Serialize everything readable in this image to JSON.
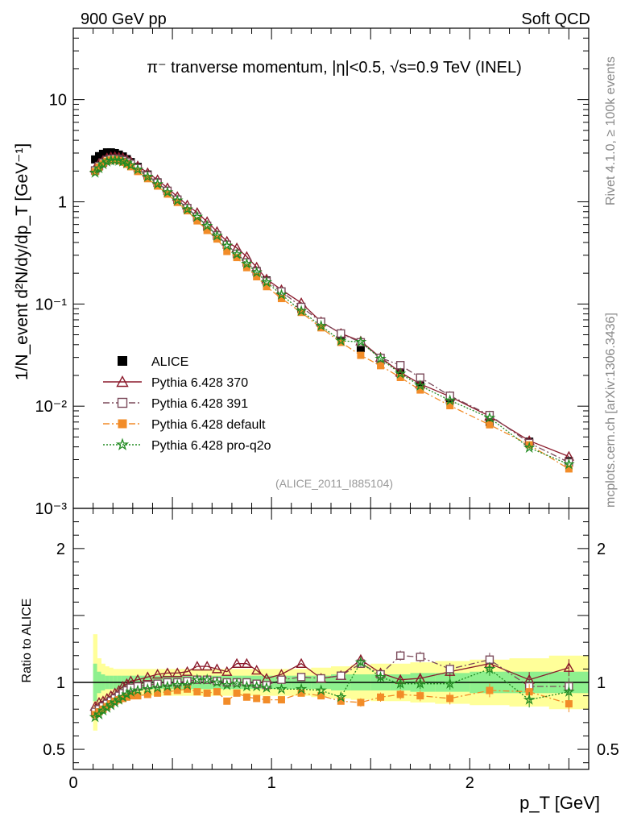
{
  "header": {
    "left": "900 GeV pp",
    "right": "Soft QCD"
  },
  "side": {
    "rivet": "Rivet 4.1.0, ≥ 100k events",
    "mcplots": "mcplots.cern.ch [arXiv:1306.3436]"
  },
  "chart_data": {
    "type": "scatter",
    "title": "π⁻ tranverse momentum, |η|<0.5, √s=0.9 TeV (INEL)",
    "analysis_tag": "(ALICE_2011_I885104)",
    "ylabel": "1/N_event d²N/dy/dp_T [GeV⁻¹]",
    "xlabel": "p_T [GeV]",
    "ratio_ylabel": "Ratio to ALICE",
    "xlim": [
      0,
      2.6
    ],
    "ylim": [
      0.001,
      50
    ],
    "ratio_ylim": [
      0.35,
      2.3
    ],
    "y_ticks": [
      "10⁻³",
      "10⁻²",
      "10⁻¹",
      "1",
      "10"
    ],
    "x_ticks": [
      "0",
      "1",
      "2"
    ],
    "ratio_ticks": [
      "0.5",
      "1",
      "2"
    ],
    "x": [
      0.11,
      0.13,
      0.15,
      0.17,
      0.19,
      0.21,
      0.23,
      0.25,
      0.27,
      0.29,
      0.325,
      0.375,
      0.425,
      0.475,
      0.525,
      0.575,
      0.625,
      0.675,
      0.725,
      0.775,
      0.825,
      0.875,
      0.925,
      0.975,
      1.05,
      1.15,
      1.25,
      1.35,
      1.45,
      1.55,
      1.65,
      1.75,
      1.9,
      2.1,
      2.3,
      2.5
    ],
    "series": [
      {
        "name": "ALICE",
        "color": "#000000",
        "marker": "square-filled",
        "values": [
          2.6,
          2.8,
          2.95,
          3.05,
          3.05,
          3.0,
          2.9,
          2.78,
          2.62,
          2.45,
          2.2,
          1.85,
          1.55,
          1.28,
          1.05,
          0.86,
          0.7,
          0.57,
          0.465,
          0.38,
          0.31,
          0.255,
          0.21,
          0.17,
          0.13,
          0.09,
          0.065,
          0.049,
          0.037,
          0.028,
          0.021,
          0.016,
          0.0115,
          0.007,
          0.0045,
          0.0029
        ]
      },
      {
        "name": "Pythia 6.428 370",
        "color": "#8b1a2b",
        "marker": "triangle-open",
        "line": "solid",
        "ratio": [
          0.82,
          0.85,
          0.86,
          0.88,
          0.9,
          0.92,
          0.94,
          0.97,
          0.99,
          1.01,
          1.02,
          1.04,
          1.06,
          1.07,
          1.07,
          1.08,
          1.12,
          1.12,
          1.1,
          1.08,
          1.14,
          1.14,
          1.09,
          1.03,
          1.06,
          1.14,
          1.03,
          1.05,
          1.17,
          1.07,
          1.02,
          1.03,
          1.08,
          1.14,
          1.02,
          1.11
        ]
      },
      {
        "name": "Pythia 6.428 391",
        "color": "#7b4a5a",
        "marker": "square-open",
        "line": "dashdot",
        "ratio": [
          0.78,
          0.8,
          0.82,
          0.84,
          0.86,
          0.88,
          0.9,
          0.92,
          0.94,
          0.96,
          0.97,
          0.98,
          0.99,
          1.0,
          1.0,
          1.01,
          1.02,
          1.02,
          1.01,
          1.0,
          1.0,
          1.0,
          0.99,
          0.98,
          1.02,
          1.04,
          1.03,
          1.05,
          1.14,
          1.06,
          1.2,
          1.19,
          1.1,
          1.17,
          0.97,
          0.97
        ]
      },
      {
        "name": "Pythia 6.428 default",
        "color": "#f28c28",
        "marker": "square-filled",
        "line": "dashdot",
        "ratio": [
          0.76,
          0.78,
          0.8,
          0.82,
          0.84,
          0.86,
          0.87,
          0.88,
          0.89,
          0.9,
          0.9,
          0.91,
          0.92,
          0.93,
          0.94,
          0.95,
          0.93,
          0.92,
          0.93,
          0.86,
          0.92,
          0.89,
          0.88,
          0.87,
          0.87,
          0.92,
          0.9,
          0.86,
          0.85,
          0.89,
          0.91,
          0.9,
          0.88,
          0.94,
          0.93,
          0.84
        ]
      },
      {
        "name": "Pythia 6.428 pro-q2o",
        "color": "#228b22",
        "marker": "star-open",
        "line": "dotted",
        "ratio": [
          0.74,
          0.76,
          0.79,
          0.81,
          0.83,
          0.85,
          0.87,
          0.89,
          0.91,
          0.93,
          0.94,
          0.95,
          0.96,
          0.97,
          0.98,
          0.98,
          1.02,
          1.02,
          1.0,
          0.98,
          0.99,
          0.97,
          0.97,
          0.96,
          0.95,
          0.95,
          0.94,
          0.89,
          1.15,
          1.04,
          0.99,
          0.99,
          0.99,
          1.1,
          0.87,
          0.93
        ]
      }
    ],
    "band_inner": [
      1.14,
      1.08,
      1.06,
      1.05,
      1.05,
      1.05,
      1.05,
      1.05,
      1.05,
      1.05,
      1.05,
      1.05,
      1.05,
      1.05,
      1.05,
      1.05,
      1.05,
      1.05,
      1.05,
      1.05,
      1.05,
      1.05,
      1.05,
      1.05,
      1.05,
      1.05,
      1.05,
      1.06,
      1.06,
      1.06,
      1.06,
      1.07,
      1.07,
      1.08,
      1.08,
      1.08
    ],
    "band_outer": [
      1.36,
      1.18,
      1.14,
      1.12,
      1.11,
      1.1,
      1.1,
      1.1,
      1.1,
      1.1,
      1.1,
      1.1,
      1.1,
      1.1,
      1.1,
      1.1,
      1.1,
      1.1,
      1.1,
      1.1,
      1.1,
      1.1,
      1.1,
      1.1,
      1.1,
      1.1,
      1.11,
      1.12,
      1.13,
      1.14,
      1.14,
      1.15,
      1.16,
      1.17,
      1.18,
      1.2
    ]
  }
}
